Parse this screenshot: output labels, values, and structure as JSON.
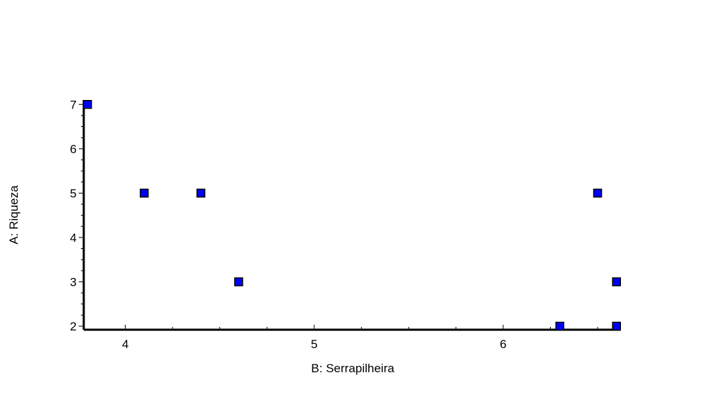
{
  "chart_data": {
    "type": "scatter",
    "title": "",
    "xlabel": "B: Serrapilheira",
    "ylabel": "A: Riqueza",
    "xlim": [
      3.78,
      6.62
    ],
    "ylim": [
      1.92,
      7.1
    ],
    "xticks": [
      4,
      5,
      6
    ],
    "xtick_labels": [
      "4",
      "5",
      "6"
    ],
    "yticks": [
      2,
      3,
      4,
      5,
      6,
      7
    ],
    "ytick_labels": [
      "2",
      "3",
      "4",
      "5",
      "6",
      "7"
    ],
    "x_minor_step": 0.25,
    "y_minor_step": 0.25,
    "grid": false,
    "series": [
      {
        "marker": "square",
        "color": "#0000ff",
        "points": [
          {
            "x": 3.8,
            "y": 7
          },
          {
            "x": 4.1,
            "y": 5
          },
          {
            "x": 4.4,
            "y": 5
          },
          {
            "x": 4.6,
            "y": 3
          },
          {
            "x": 6.3,
            "y": 2
          },
          {
            "x": 6.5,
            "y": 5
          },
          {
            "x": 6.6,
            "y": 3
          },
          {
            "x": 6.6,
            "y": 2
          }
        ]
      }
    ]
  }
}
